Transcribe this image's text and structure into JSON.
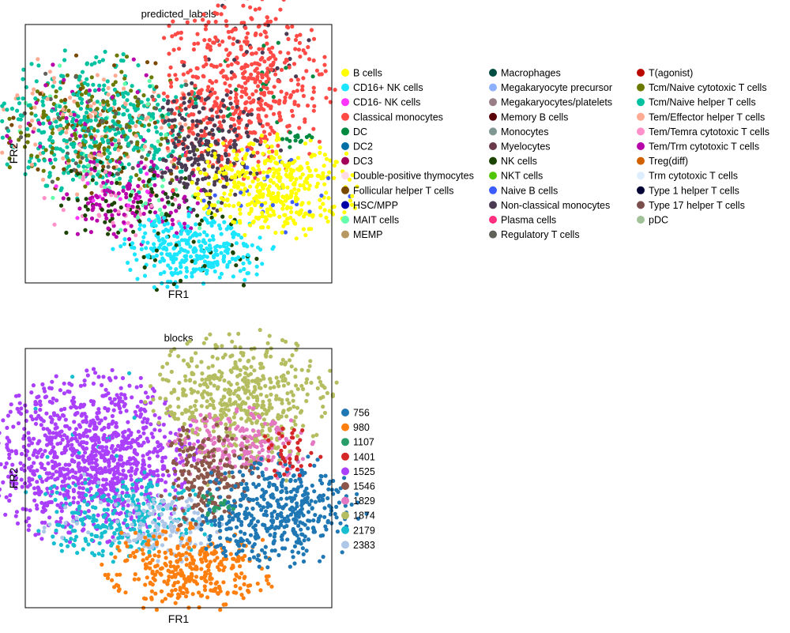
{
  "chart_data": [
    {
      "type": "scatter",
      "title": "predicted_labels",
      "xlabel": "FR1",
      "ylabel": "FR2",
      "xticks": [],
      "yticks": [],
      "grid": false,
      "legend_position": "right",
      "legend": [
        {
          "label": "B cells",
          "color": "#ffff00"
        },
        {
          "label": "CD16+ NK cells",
          "color": "#1ce6ff"
        },
        {
          "label": "CD16- NK cells",
          "color": "#ff34ff"
        },
        {
          "label": "Classical monocytes",
          "color": "#ff4a46"
        },
        {
          "label": "DC",
          "color": "#008941"
        },
        {
          "label": "DC2",
          "color": "#006fa6"
        },
        {
          "label": "DC3",
          "color": "#a30059"
        },
        {
          "label": "Double-positive thymocytes",
          "color": "#ffdbe5"
        },
        {
          "label": "Follicular helper T cells",
          "color": "#7a4900"
        },
        {
          "label": "HSC/MPP",
          "color": "#0000a6"
        },
        {
          "label": "MAIT cells",
          "color": "#63ffac"
        },
        {
          "label": "MEMP",
          "color": "#b79762"
        },
        {
          "label": "Macrophages",
          "color": "#004d43"
        },
        {
          "label": "Megakaryocyte precursor",
          "color": "#8fb0ff"
        },
        {
          "label": "Megakaryocytes/platelets",
          "color": "#997d87"
        },
        {
          "label": "Memory B cells",
          "color": "#5a0007"
        },
        {
          "label": "Monocytes",
          "color": "#809693"
        },
        {
          "label": "Myelocytes",
          "color": "#6a3a4c"
        },
        {
          "label": "NK cells",
          "color": "#1b4400"
        },
        {
          "label": "NKT cells",
          "color": "#4fc601"
        },
        {
          "label": "Naive B cells",
          "color": "#3b5dff"
        },
        {
          "label": "Non-classical monocytes",
          "color": "#4a3b53"
        },
        {
          "label": "Plasma cells",
          "color": "#ff2f80"
        },
        {
          "label": "Regulatory T cells",
          "color": "#61615a"
        },
        {
          "label": "T(agonist)",
          "color": "#ba0900"
        },
        {
          "label": "Tcm/Naive cytotoxic T cells",
          "color": "#6b7900"
        },
        {
          "label": "Tcm/Naive helper T cells",
          "color": "#00c2a0"
        },
        {
          "label": "Tem/Effector helper T cells",
          "color": "#ffaa92"
        },
        {
          "label": "Tem/Temra cytotoxic T cells",
          "color": "#ff90c9"
        },
        {
          "label": "Tem/Trm cytotoxic T cells",
          "color": "#b903aa"
        },
        {
          "label": "Treg(diff)",
          "color": "#d16100"
        },
        {
          "label": "Trm cytotoxic T cells",
          "color": "#ddefff"
        },
        {
          "label": "Type 1 helper T cells",
          "color": "#000035"
        },
        {
          "label": "Type 17 helper T cells",
          "color": "#7b4f4b"
        },
        {
          "label": "pDC",
          "color": "#a1c299"
        }
      ]
    },
    {
      "type": "scatter",
      "title": "blocks",
      "xlabel": "FR1",
      "ylabel": "FR2",
      "xticks": [],
      "yticks": [],
      "grid": false,
      "legend_position": "right",
      "legend": [
        {
          "label": "756",
          "color": "#1f77b4"
        },
        {
          "label": "980",
          "color": "#ff7f0e"
        },
        {
          "label": "1107",
          "color": "#279e68"
        },
        {
          "label": "1401",
          "color": "#d62728"
        },
        {
          "label": "1525",
          "color": "#aa40fc"
        },
        {
          "label": "1546",
          "color": "#8c564b"
        },
        {
          "label": "1829",
          "color": "#e377c2"
        },
        {
          "label": "1874",
          "color": "#b5bd61"
        },
        {
          "label": "2179",
          "color": "#17becf"
        },
        {
          "label": "2383",
          "color": "#aec7e8"
        }
      ]
    }
  ]
}
